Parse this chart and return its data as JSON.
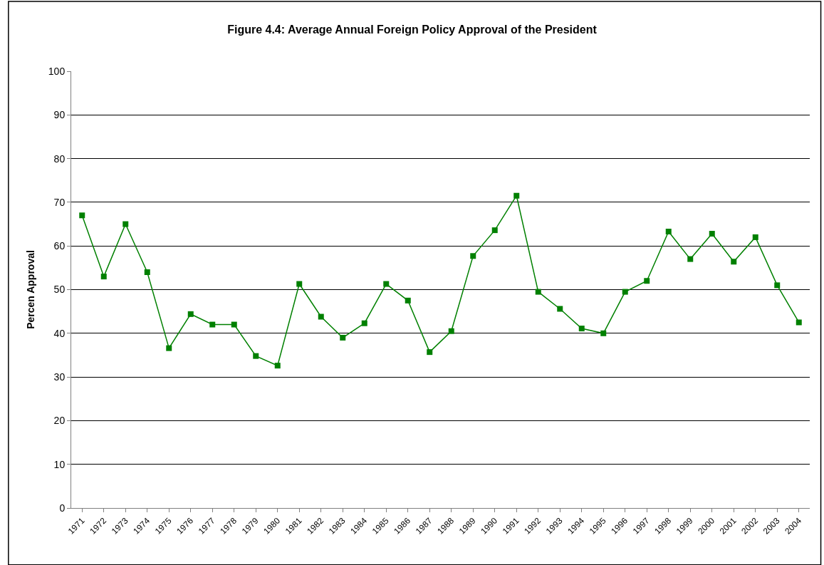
{
  "chart_data": {
    "type": "line",
    "title": "Figure 4.4: Average Annual Foreign Policy Approval of the President",
    "ylabel": "Percen Approval",
    "categories": [
      "1971",
      "1972",
      "1973",
      "1974",
      "1975",
      "1976",
      "1977",
      "1978",
      "1979",
      "1980",
      "1981",
      "1982",
      "1983",
      "1984",
      "1985",
      "1986",
      "1987",
      "1988",
      "1989",
      "1990",
      "1991",
      "1992",
      "1993",
      "1994",
      "1995",
      "1996",
      "1997",
      "1998",
      "1999",
      "2000",
      "2001",
      "2002",
      "2003",
      "2004"
    ],
    "series": [
      {
        "color": "#008000",
        "values": [
          67.0,
          53.0,
          65.0,
          54.0,
          36.6,
          44.4,
          42.0,
          42.0,
          34.8,
          32.6,
          51.3,
          43.8,
          39.0,
          42.3,
          51.3,
          47.5,
          35.7,
          40.5,
          57.7,
          63.6,
          71.5,
          49.5,
          45.6,
          41.1,
          40.0,
          49.5,
          52.0,
          63.3,
          57.0,
          62.8,
          56.4,
          62.0,
          51.0,
          42.5
        ]
      }
    ],
    "ylim": [
      0,
      100
    ],
    "yticks": [
      0,
      10,
      20,
      30,
      40,
      50,
      60,
      70,
      80,
      90,
      100
    ],
    "grid": "y",
    "marker": "square",
    "line_style": "solid"
  }
}
